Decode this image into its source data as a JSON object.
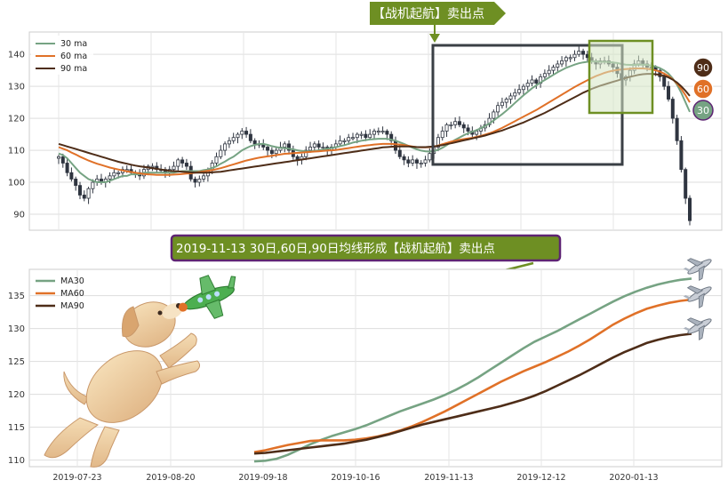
{
  "banner_top": "【战机起航】卖出点",
  "banner_mid": "2019-11-13 30日,60日,90日均线形成【战机起航】卖出点",
  "colors": {
    "ma30": "#76a383",
    "ma60": "#e07128",
    "ma90": "#4e2d18",
    "banner_green": "#6e8f23",
    "banner_purple": "#5e2473",
    "candle": "#2f3540"
  },
  "bubbles": [
    {
      "label": "90",
      "color": "#4e2d18"
    },
    {
      "label": "60",
      "color": "#e07128"
    },
    {
      "label": "30",
      "color": "#76a383"
    }
  ],
  "icons": [
    "airplane-icon",
    "dog-illustration",
    "arrow-icon"
  ],
  "chart_data": [
    {
      "type": "candlestick",
      "ylim": [
        85,
        147
      ],
      "yticks": [
        90,
        100,
        110,
        120,
        130,
        140
      ],
      "legend_placement": "top-left",
      "grid": true,
      "legend": [
        "30 ma",
        "60 ma",
        "90 ma"
      ],
      "close": [
        108,
        106,
        103,
        101,
        99,
        96,
        95,
        98,
        100,
        101,
        100,
        101,
        102,
        103,
        103,
        104,
        104,
        103,
        103,
        102,
        104,
        105,
        105,
        104,
        104,
        103,
        104,
        105,
        107,
        106,
        105,
        101,
        100,
        101,
        102,
        104,
        106,
        108,
        110,
        112,
        113,
        114,
        115,
        116,
        115,
        113,
        112,
        112,
        111,
        110,
        109,
        110,
        111,
        112,
        110,
        108,
        107,
        108,
        110,
        111,
        112,
        111,
        111,
        110,
        111,
        112,
        113,
        113,
        114,
        114,
        115,
        115,
        114,
        115,
        116,
        116,
        116,
        115,
        113,
        110,
        108,
        107,
        106,
        107,
        106,
        106,
        107,
        109,
        111,
        114,
        116,
        118,
        118,
        119,
        118,
        117,
        116,
        115,
        116,
        117,
        118,
        120,
        122,
        124,
        125,
        126,
        127,
        128,
        129,
        130,
        131,
        132,
        131,
        133,
        134,
        135,
        136,
        137,
        138,
        139,
        139,
        140,
        141,
        140,
        139,
        138,
        137,
        138,
        138,
        137,
        136,
        134,
        132,
        133,
        135,
        137,
        138,
        137,
        136,
        136,
        135,
        133,
        130,
        126,
        120,
        113,
        104,
        95,
        88
      ],
      "series": [
        {
          "name": "30 ma",
          "values": [
            109,
            108.5,
            107.5,
            106,
            104.5,
            103,
            102,
            101,
            100.5,
            100,
            100,
            100,
            100.5,
            101,
            101.5,
            102,
            102,
            102.5,
            102.5,
            102.5,
            103,
            103,
            103,
            103,
            103,
            103,
            103,
            103,
            103.3,
            103.5,
            103.5,
            103.5,
            103.5,
            103.5,
            103.8,
            104,
            104.5,
            105,
            105.8,
            106.5,
            107.3,
            108,
            109,
            110,
            110.7,
            111.3,
            111.7,
            112,
            112,
            111.7,
            111.3,
            111,
            110.8,
            110.7,
            110.5,
            110.3,
            110,
            109.8,
            109.7,
            109.7,
            109.8,
            110,
            110.2,
            110.5,
            110.7,
            111,
            111.3,
            111.6,
            112,
            112.4,
            112.7,
            113,
            113.2,
            113.4,
            113.5,
            113.6,
            113.6,
            113.6,
            113.3,
            113,
            112.5,
            112,
            111.4,
            110.8,
            110.3,
            109.9,
            109.7,
            109.6,
            109.8,
            110.2,
            110.8,
            111.6,
            112.5,
            113.3,
            114,
            114.7,
            115.3,
            115.8,
            116.3,
            116.9,
            117.6,
            118.4,
            119.3,
            120.3,
            121.3,
            122.4,
            123.6,
            124.8,
            126,
            127.2,
            128.3,
            129.4,
            130.3,
            131.2,
            132,
            132.8,
            133.6,
            134.4,
            135.1,
            135.8,
            136.3,
            136.8,
            137.2,
            137.5,
            137.7,
            137.8,
            137.8,
            137.7,
            137.7,
            137.6,
            137.5,
            137.3,
            137,
            136.8,
            136.7,
            136.7,
            136.8,
            136.8,
            136.7,
            136.5,
            136.2,
            135.7,
            135,
            134,
            132.5,
            130.5,
            128,
            125,
            122
          ]
        },
        {
          "name": "60 ma",
          "values": [
            111,
            110.5,
            110,
            109.3,
            108.7,
            108,
            107.4,
            106.8,
            106.3,
            105.8,
            105.4,
            105,
            104.6,
            104.3,
            104,
            103.7,
            103.4,
            103.2,
            103,
            102.8,
            102.6,
            102.5,
            102.4,
            102.3,
            102.3,
            102.3,
            102.3,
            102.4,
            102.5,
            102.6,
            102.7,
            102.8,
            103,
            103.2,
            103.4,
            103.6,
            103.8,
            104.1,
            104.4,
            104.8,
            105.2,
            105.6,
            106,
            106.4,
            106.8,
            107.1,
            107.4,
            107.7,
            107.9,
            108.1,
            108.3,
            108.5,
            108.7,
            108.9,
            109,
            109.1,
            109.2,
            109.3,
            109.4,
            109.5,
            109.6,
            109.7,
            109.8,
            109.9,
            110,
            110.1,
            110.3,
            110.5,
            110.7,
            110.9,
            111.1,
            111.3,
            111.5,
            111.6,
            111.8,
            111.9,
            112,
            112,
            112,
            111.9,
            111.8,
            111.6,
            111.4,
            111.2,
            111,
            110.9,
            110.9,
            111,
            111.2,
            111.5,
            111.9,
            112.3,
            112.7,
            113,
            113.3,
            113.5,
            113.7,
            113.9,
            114.2,
            114.5,
            114.9,
            115.3,
            115.8,
            116.4,
            117,
            117.7,
            118.4,
            119.1,
            119.8,
            120.5,
            121.2,
            121.9,
            122.6,
            123.4,
            124.2,
            125,
            125.8,
            126.6,
            127.4,
            128.2,
            129,
            129.8,
            130.5,
            131.2,
            131.9,
            132.6,
            133.2,
            133.7,
            134.2,
            134.6,
            134.9,
            135.1,
            135.3,
            135.4,
            135.5,
            135.6,
            135.6,
            135.6,
            135.5,
            135.3,
            135,
            134.6,
            134,
            133.2,
            132.2,
            130.9,
            129.2,
            127.2,
            125
          ]
        },
        {
          "name": "90 ma",
          "values": [
            112,
            111.6,
            111.2,
            110.8,
            110.4,
            110,
            109.6,
            109.2,
            108.8,
            108.4,
            108,
            107.6,
            107.2,
            106.8,
            106.4,
            106.1,
            105.8,
            105.5,
            105.2,
            105,
            104.8,
            104.6,
            104.4,
            104.2,
            104,
            103.8,
            103.6,
            103.5,
            103.4,
            103.3,
            103.2,
            103.1,
            103,
            103,
            103,
            103,
            103.1,
            103.2,
            103.3,
            103.5,
            103.7,
            103.9,
            104.1,
            104.3,
            104.5,
            104.7,
            104.9,
            105.1,
            105.3,
            105.5,
            105.7,
            105.9,
            106.1,
            106.3,
            106.5,
            106.7,
            106.9,
            107.1,
            107.3,
            107.5,
            107.7,
            107.9,
            108.1,
            108.3,
            108.5,
            108.7,
            108.9,
            109.1,
            109.3,
            109.5,
            109.7,
            109.9,
            110.1,
            110.3,
            110.5,
            110.7,
            110.9,
            111,
            111.1,
            111.2,
            111.2,
            111.2,
            111.2,
            111.1,
            111,
            111,
            111,
            111.1,
            111.2,
            111.4,
            111.6,
            111.9,
            112.2,
            112.5,
            112.8,
            113.1,
            113.4,
            113.7,
            114,
            114.3,
            114.6,
            115,
            115.4,
            115.8,
            116.2,
            116.7,
            117.2,
            117.7,
            118.2,
            118.7,
            119.3,
            119.9,
            120.5,
            121.1,
            121.7,
            122.4,
            123.1,
            123.8,
            124.5,
            125.2,
            125.9,
            126.6,
            127.3,
            128,
            128.6,
            129.2,
            129.7,
            130.2,
            130.6,
            131,
            131.4,
            131.8,
            132.2,
            132.6,
            133,
            133.3,
            133.6,
            133.8,
            133.9,
            133.9,
            133.8,
            133.6,
            133.3,
            132.8,
            132.1,
            131.2,
            130,
            128.6,
            127
          ]
        }
      ]
    },
    {
      "type": "line",
      "ylim": [
        109,
        139
      ],
      "yticks": [
        110,
        115,
        120,
        125,
        130,
        135
      ],
      "x_tick_labels": [
        "2019-07-23",
        "2019-08-20",
        "2019-09-18",
        "2019-10-16",
        "2019-11-13",
        "2019-12-12",
        "2020-01-13"
      ],
      "legend_placement": "top-left",
      "grid": true,
      "series": [
        {
          "name": "MA30",
          "values": [
            109.8,
            109.9,
            110.2,
            110.8,
            111.6,
            112.4,
            113.1,
            113.7,
            114.2,
            114.7,
            115.3,
            116,
            116.7,
            117.4,
            118,
            118.6,
            119.2,
            119.9,
            120.7,
            121.6,
            122.6,
            123.7,
            124.8,
            125.9,
            127,
            128,
            128.8,
            129.6,
            130.5,
            131.4,
            132.3,
            133.2,
            134.1,
            134.9,
            135.6,
            136.2,
            136.7,
            137.1,
            137.4,
            137.6
          ]
        },
        {
          "name": "MA60",
          "values": [
            111.2,
            111.5,
            111.9,
            112.3,
            112.6,
            112.9,
            113,
            113,
            113,
            113.1,
            113.3,
            113.6,
            114,
            114.5,
            115.1,
            115.8,
            116.6,
            117.4,
            118.3,
            119.2,
            120.1,
            121,
            121.9,
            122.7,
            123.5,
            124.2,
            124.9,
            125.7,
            126.5,
            127.4,
            128.4,
            129.5,
            130.6,
            131.5,
            132.3,
            133,
            133.5,
            133.9,
            134.2,
            134.4
          ]
        },
        {
          "name": "MA90",
          "values": [
            111,
            111.1,
            111.3,
            111.5,
            111.7,
            111.9,
            112.1,
            112.3,
            112.5,
            112.8,
            113.1,
            113.5,
            113.9,
            114.4,
            114.9,
            115.4,
            115.8,
            116.2,
            116.6,
            117,
            117.4,
            117.8,
            118.2,
            118.7,
            119.2,
            119.8,
            120.5,
            121.3,
            122.1,
            122.9,
            123.8,
            124.7,
            125.6,
            126.4,
            127.1,
            127.8,
            128.3,
            128.7,
            129,
            129.2
          ]
        }
      ]
    }
  ]
}
